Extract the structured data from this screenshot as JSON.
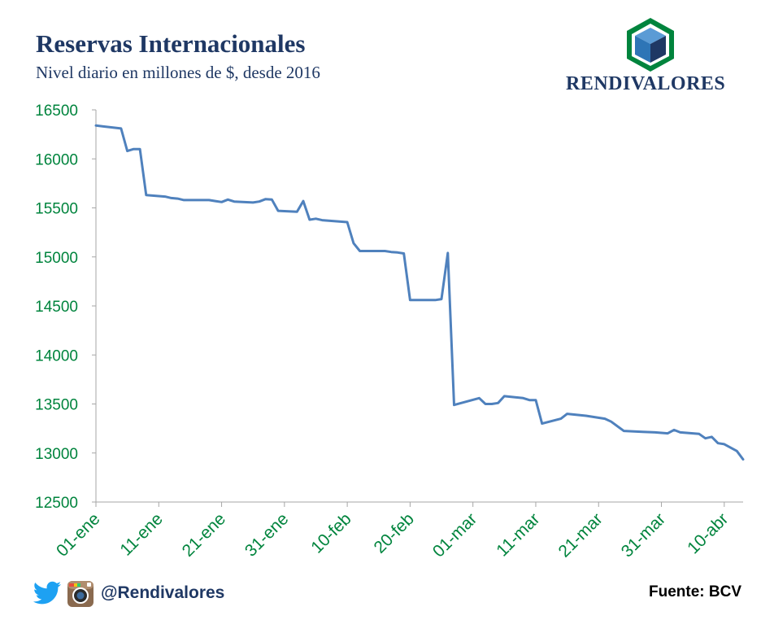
{
  "header": {
    "title": "Reservas Internacionales",
    "subtitle": "Nivel diario en millones de $, desde 2016"
  },
  "brand": {
    "name": "RENDIVALORES",
    "icon": "cube-logo-icon"
  },
  "footer": {
    "handle": "@Rendivalores",
    "source": "Fuente: BCV",
    "icons": [
      "twitter-icon",
      "instagram-icon"
    ]
  },
  "colors": {
    "line": "#4f81bd",
    "axis_text": "#00843d",
    "title": "#1f3864"
  },
  "chart_data": {
    "type": "line",
    "title": "Reservas Internacionales",
    "subtitle": "Nivel diario en millones de $, desde 2016",
    "xlabel": "",
    "ylabel": "",
    "ylim": [
      12500,
      16500
    ],
    "yticks": [
      12500,
      13000,
      13500,
      14000,
      14500,
      15000,
      15500,
      16000,
      16500
    ],
    "xticks": [
      "01-ene",
      "11-ene",
      "21-ene",
      "31-ene",
      "10-feb",
      "20-feb",
      "01-mar",
      "11-mar",
      "21-mar",
      "31-mar",
      "10-abr"
    ],
    "xlim": [
      "2016-01-01",
      "2016-04-13"
    ],
    "grid": false,
    "legend": "none",
    "series": [
      {
        "color": "#4f81bd",
        "points": [
          [
            "2016-01-01",
            16340
          ],
          [
            "2016-01-05",
            16310
          ],
          [
            "2016-01-06",
            16080
          ],
          [
            "2016-01-07",
            16100
          ],
          [
            "2016-01-08",
            16100
          ],
          [
            "2016-01-08",
            16100
          ],
          [
            "2016-01-09",
            15630
          ],
          [
            "2016-01-12",
            15615
          ],
          [
            "2016-01-13",
            15600
          ],
          [
            "2016-01-14",
            15595
          ],
          [
            "2016-01-15",
            15580
          ],
          [
            "2016-01-19",
            15580
          ],
          [
            "2016-01-20",
            15570
          ],
          [
            "2016-01-21",
            15560
          ],
          [
            "2016-01-22",
            15585
          ],
          [
            "2016-01-23",
            15565
          ],
          [
            "2016-01-26",
            15555
          ],
          [
            "2016-01-27",
            15565
          ],
          [
            "2016-01-28",
            15590
          ],
          [
            "2016-01-29",
            15585
          ],
          [
            "2016-01-30",
            15470
          ],
          [
            "2016-02-02",
            15460
          ],
          [
            "2016-02-03",
            15570
          ],
          [
            "2016-02-04",
            15380
          ],
          [
            "2016-02-05",
            15390
          ],
          [
            "2016-02-06",
            15375
          ],
          [
            "2016-02-10",
            15355
          ],
          [
            "2016-02-11",
            15140
          ],
          [
            "2016-02-12",
            15060
          ],
          [
            "2016-02-16",
            15060
          ],
          [
            "2016-02-17",
            15050
          ],
          [
            "2016-02-18",
            15045
          ],
          [
            "2016-02-19",
            15035
          ],
          [
            "2016-02-20",
            14560
          ],
          [
            "2016-02-24",
            14560
          ],
          [
            "2016-02-25",
            14570
          ],
          [
            "2016-02-26",
            15040
          ],
          [
            "2016-02-27",
            13490
          ],
          [
            "2016-03-02",
            13560
          ],
          [
            "2016-03-03",
            13500
          ],
          [
            "2016-03-04",
            13500
          ],
          [
            "2016-03-05",
            13510
          ],
          [
            "2016-03-06",
            13580
          ],
          [
            "2016-03-09",
            13560
          ],
          [
            "2016-03-10",
            13540
          ],
          [
            "2016-03-11",
            13540
          ],
          [
            "2016-03-12",
            13300
          ],
          [
            "2016-03-15",
            13350
          ],
          [
            "2016-03-16",
            13400
          ],
          [
            "2016-03-19",
            13380
          ],
          [
            "2016-03-22",
            13350
          ],
          [
            "2016-03-23",
            13320
          ],
          [
            "2016-03-25",
            13225
          ],
          [
            "2016-03-28",
            13215
          ],
          [
            "2016-03-30",
            13210
          ],
          [
            "2016-03-31",
            13205
          ],
          [
            "2016-04-01",
            13200
          ],
          [
            "2016-04-02",
            13235
          ],
          [
            "2016-04-03",
            13210
          ],
          [
            "2016-04-06",
            13195
          ],
          [
            "2016-04-07",
            13150
          ],
          [
            "2016-04-08",
            13165
          ],
          [
            "2016-04-09",
            13100
          ],
          [
            "2016-04-10",
            13090
          ],
          [
            "2016-04-12",
            13020
          ],
          [
            "2016-04-13",
            12935
          ]
        ]
      }
    ]
  }
}
